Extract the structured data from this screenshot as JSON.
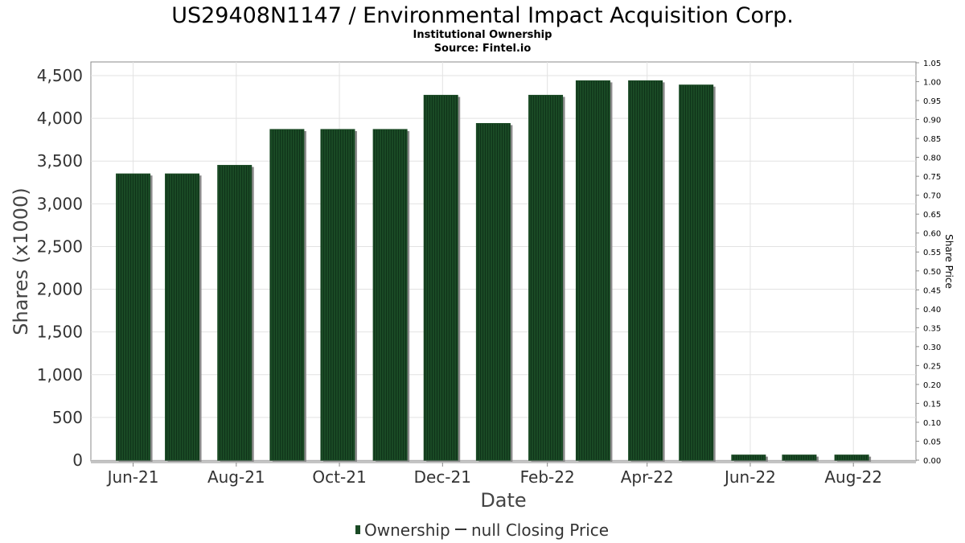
{
  "colors": {
    "bar": "#1a4a25",
    "bar_stripe": "#0f3319",
    "bar_shadow": "#8a8a8a",
    "grid": "#e2e2e2",
    "plot_border": "#888888",
    "line": "#333333"
  },
  "chart_data": {
    "type": "bar",
    "title": "US29408N1147 / Environmental Impact Acquisition Corp.",
    "subtitle": "Institutional Ownership",
    "source": "Source: Fintel.io",
    "xlabel": "Date",
    "ylabel": "Shares (x1000)",
    "y2label": "Share Price",
    "ylim": [
      0,
      4650
    ],
    "y2lim": [
      0,
      1.05
    ],
    "grid": true,
    "legend_position": "bottom",
    "x_range": [
      "2021-05-07",
      "2022-09-07"
    ],
    "x_ticks": [
      {
        "label": "Jun-21",
        "date": "2021-06-01"
      },
      {
        "label": "Aug-21",
        "date": "2021-08-01"
      },
      {
        "label": "Oct-21",
        "date": "2021-10-01"
      },
      {
        "label": "Dec-21",
        "date": "2021-12-01"
      },
      {
        "label": "Feb-22",
        "date": "2022-02-01"
      },
      {
        "label": "Apr-22",
        "date": "2022-04-01"
      },
      {
        "label": "Jun-22",
        "date": "2022-06-01"
      },
      {
        "label": "Aug-22",
        "date": "2022-08-01"
      }
    ],
    "y_ticks": [
      0,
      500,
      1000,
      1500,
      2000,
      2500,
      3000,
      3500,
      4000,
      4500
    ],
    "y_tick_labels": [
      "0",
      "500",
      "1,000",
      "1,500",
      "2,000",
      "2,500",
      "3,000",
      "3,500",
      "4,000",
      "4,500"
    ],
    "y2_ticks": [
      "0.00",
      "0.05",
      "0.10",
      "0.15",
      "0.20",
      "0.25",
      "0.30",
      "0.35",
      "0.40",
      "0.45",
      "0.50",
      "0.55",
      "0.60",
      "0.65",
      "0.70",
      "0.75",
      "0.80",
      "0.85",
      "0.90",
      "0.95",
      "1.00",
      "1.05"
    ],
    "series": [
      {
        "name": "Ownership",
        "x": [
          "2021-06-01",
          "2021-06-30",
          "2021-07-31",
          "2021-08-31",
          "2021-09-30",
          "2021-10-31",
          "2021-11-30",
          "2021-12-31",
          "2022-01-31",
          "2022-02-28",
          "2022-03-31",
          "2022-04-30",
          "2022-05-31",
          "2022-06-30",
          "2022-07-31"
        ],
        "values": [
          3350,
          3350,
          3450,
          3870,
          3870,
          3870,
          4270,
          3940,
          4270,
          4440,
          4440,
          4390,
          60,
          60,
          60
        ]
      }
    ],
    "legend": [
      {
        "label": "Ownership",
        "marker": "bar"
      },
      {
        "label": "null Closing Price",
        "marker": "line"
      }
    ]
  }
}
